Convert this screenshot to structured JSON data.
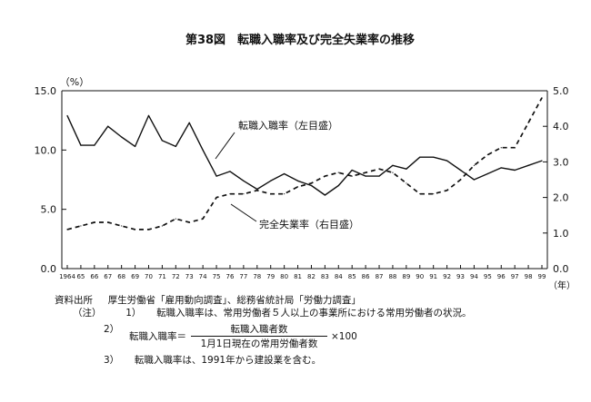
{
  "chart_data": {
    "type": "line",
    "title": "第38図　転職入職率及び完全失業率の推移",
    "left_axis": {
      "unit_label": "（%）",
      "min": 0,
      "max": 15,
      "ticks": [
        "0.0",
        "5.0",
        "10.0",
        "15.0"
      ]
    },
    "right_axis": {
      "min": 0,
      "max": 5,
      "ticks": [
        "0.0",
        "1.0",
        "2.0",
        "3.0",
        "4.0",
        "5.0"
      ]
    },
    "x_unit_label": "（年）",
    "categories": [
      "1964",
      "65",
      "66",
      "67",
      "68",
      "69",
      "70",
      "71",
      "72",
      "73",
      "74",
      "75",
      "76",
      "77",
      "78",
      "79",
      "80",
      "81",
      "82",
      "83",
      "84",
      "85",
      "86",
      "87",
      "88",
      "89",
      "90",
      "91",
      "92",
      "93",
      "94",
      "95",
      "96",
      "97",
      "98",
      "99"
    ],
    "series": [
      {
        "name": "転職入職率（左目盛）",
        "axis": "left",
        "style": "solid",
        "values": [
          12.9,
          10.4,
          10.4,
          12.0,
          11.1,
          10.3,
          12.9,
          10.8,
          10.3,
          12.3,
          10.0,
          7.8,
          8.2,
          7.4,
          6.7,
          7.4,
          8.0,
          7.4,
          7.0,
          6.2,
          7.0,
          8.3,
          7.8,
          7.8,
          8.7,
          8.4,
          9.4,
          9.4,
          9.1,
          8.3,
          7.5,
          8.0,
          8.5,
          8.3,
          8.7,
          9.1
        ]
      },
      {
        "name": "完全失業率（右目盛）",
        "axis": "right",
        "style": "dashed",
        "values": [
          1.1,
          1.2,
          1.3,
          1.3,
          1.2,
          1.1,
          1.1,
          1.2,
          1.4,
          1.3,
          1.4,
          2.0,
          2.1,
          2.1,
          2.2,
          2.1,
          2.1,
          2.3,
          2.4,
          2.6,
          2.7,
          2.6,
          2.7,
          2.8,
          2.7,
          2.4,
          2.1,
          2.1,
          2.2,
          2.5,
          2.9,
          3.2,
          3.4,
          3.4,
          4.1,
          4.8
        ]
      }
    ],
    "annotations": [
      "転職入職率（左目盛）",
      "完全失業率（右目盛）"
    ],
    "grid": false
  },
  "notes": {
    "source_label": "資料出所",
    "source_text": "厚生労働省「雇用動向調査」、総務省統計局「労働力調査」",
    "note_label": "（注）",
    "note1_num": "1）",
    "note1_text": "転職入職率は、常用労働者５人以上の事業所における常用労働者の状況。",
    "note2_num": "2）",
    "note2_lhs": "転職入職率＝",
    "note2_numerator": "転職入職者数",
    "note2_denominator": "1月1日現在の常用労働者数",
    "note2_multiplier": "×100",
    "note3_num": "3）",
    "note3_text": "転職入職率は、1991年から建設業を含む。"
  }
}
